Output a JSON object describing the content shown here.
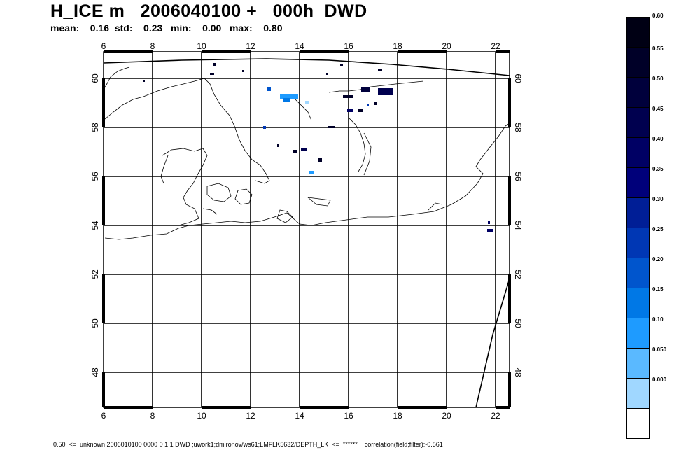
{
  "header": {
    "title": "H_ICE m   2006040100 +   000h  DWD",
    "stats": "mean:    0.16  std:    0.23   min:    0.00   max:    0.80"
  },
  "map": {
    "lon_ticks": [
      "6",
      "8",
      "10",
      "12",
      "14",
      "16",
      "18",
      "20",
      "22"
    ],
    "lat_ticks": [
      "60",
      "58",
      "56",
      "54",
      "52",
      "50",
      "48"
    ]
  },
  "colorbar": {
    "labels": [
      "0.60",
      "0.55",
      "0.50",
      "0.45",
      "0.40",
      "0.35",
      "0.30",
      "0.25",
      "0.20",
      "0.15",
      "0.10",
      "0.050",
      "0.000"
    ],
    "colors": [
      "#000014",
      "#000028",
      "#00003c",
      "#00004f",
      "#000064",
      "#00007a",
      "#001e96",
      "#0037b4",
      "#0055cd",
      "#0078e6",
      "#1e9bff",
      "#5ab9ff",
      "#a0d7ff",
      "#ffffff"
    ]
  },
  "footer": {
    "text": "0.50  <=  unknown 2006010100 0000 0 1 1 DWD ;uwork1;dmironov/ws61;LMFLK5632/DEPTH_LK  <=  ******    correlation(field;filter):-0.561"
  }
}
